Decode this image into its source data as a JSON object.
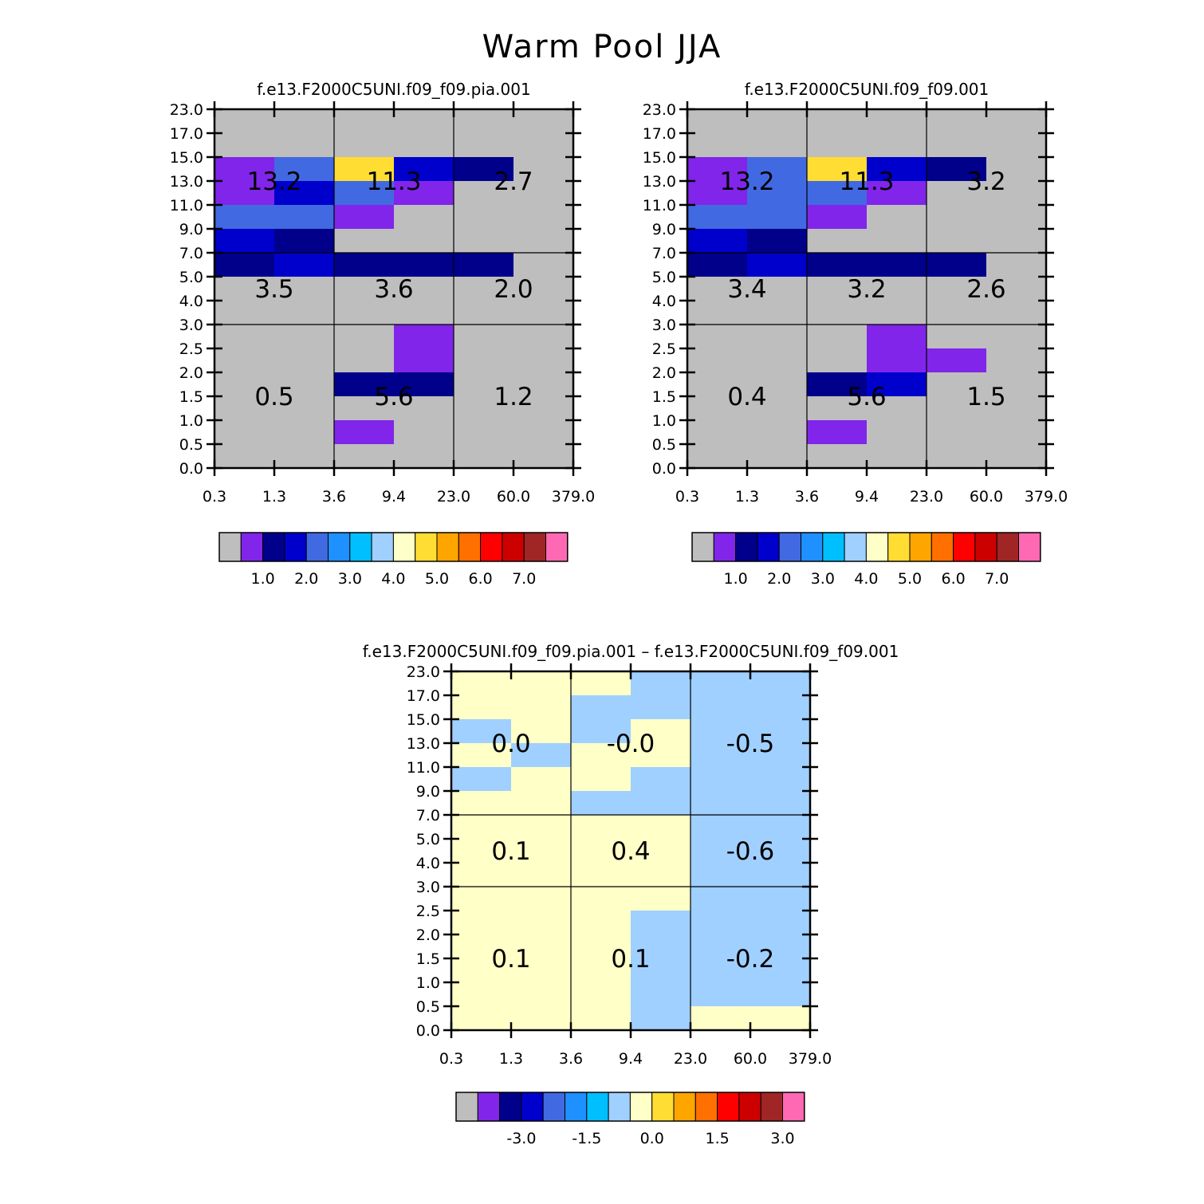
{
  "title": "Warm Pool JJA",
  "axes": {
    "x_ticks": [
      "0.3",
      "1.3",
      "3.6",
      "9.4",
      "23.0",
      "60.0",
      "379.0"
    ],
    "y_ticks": [
      "0.0",
      "0.5",
      "1.0",
      "1.5",
      "2.0",
      "2.5",
      "3.0",
      "4.0",
      "5.0",
      "7.0",
      "9.0",
      "11.0",
      "13.0",
      "15.0",
      "17.0",
      "23.0"
    ]
  },
  "palette": {
    "gray": "#bebebe",
    "purple": "#8125ea",
    "navy": "#00008b",
    "blue": "#0000cd",
    "royal": "#4169e1",
    "dodger": "#1e90ff",
    "deepsky": "#00bfff",
    "lightblue": "#a0d0ff",
    "lightyellow": "#ffffc8",
    "gold": "#ffdd33",
    "orange": "#ffa500",
    "darkorange": "#ff7000",
    "red": "#ff0000",
    "darkred": "#cd0000",
    "brown": "#a02525",
    "pink": "#ff69b4"
  },
  "chart_data": [
    {
      "type": "heatmap",
      "title": "f.e13.F2000C5UNI.f09_f09.pia.001",
      "colorbar": {
        "colors": [
          "gray",
          "purple",
          "navy",
          "blue",
          "royal",
          "dodger",
          "deepsky",
          "lightblue",
          "lightyellow",
          "gold",
          "orange",
          "darkorange",
          "red",
          "darkred",
          "brown",
          "pink"
        ],
        "labels": [
          "1.0",
          "2.0",
          "3.0",
          "4.0",
          "5.0",
          "6.0",
          "7.0"
        ],
        "label_after_index": [
          1,
          3,
          5,
          7,
          9,
          11,
          13
        ]
      },
      "grid": [
        [
          "gray",
          "gray",
          "gray",
          "gray",
          "gray",
          "gray"
        ],
        [
          "gray",
          "gray",
          "gray",
          "gray",
          "gray",
          "gray"
        ],
        [
          "purple",
          "royal",
          "gold",
          "blue",
          "navy",
          "gray"
        ],
        [
          "purple",
          "blue",
          "royal",
          "purple",
          "gray",
          "gray"
        ],
        [
          "royal",
          "royal",
          "purple",
          "gray",
          "gray",
          "gray"
        ],
        [
          "blue",
          "navy",
          "gray",
          "gray",
          "gray",
          "gray"
        ],
        [
          "navy",
          "blue",
          "navy",
          "navy",
          "navy",
          "gray"
        ],
        [
          "gray",
          "gray",
          "gray",
          "gray",
          "gray",
          "gray"
        ],
        [
          "gray",
          "gray",
          "gray",
          "gray",
          "gray",
          "gray"
        ],
        [
          "gray",
          "gray",
          "gray",
          "purple",
          "gray",
          "gray"
        ],
        [
          "gray",
          "gray",
          "gray",
          "purple",
          "gray",
          "gray"
        ],
        [
          "gray",
          "gray",
          "navy",
          "navy",
          "gray",
          "gray"
        ],
        [
          "gray",
          "gray",
          "gray",
          "gray",
          "gray",
          "gray"
        ],
        [
          "gray",
          "gray",
          "purple",
          "gray",
          "gray",
          "gray"
        ],
        [
          "gray",
          "gray",
          "gray",
          "gray",
          "gray",
          "gray"
        ]
      ],
      "cell_values": [
        [
          "13.2",
          "11.3",
          "2.7"
        ],
        [
          "3.5",
          "3.6",
          "2.0"
        ],
        [
          "0.5",
          "5.6",
          "1.2"
        ]
      ]
    },
    {
      "type": "heatmap",
      "title": "f.e13.F2000C5UNI.f09_f09.001",
      "colorbar": {
        "colors": [
          "gray",
          "purple",
          "navy",
          "blue",
          "royal",
          "dodger",
          "deepsky",
          "lightblue",
          "lightyellow",
          "gold",
          "orange",
          "darkorange",
          "red",
          "darkred",
          "brown",
          "pink"
        ],
        "labels": [
          "1.0",
          "2.0",
          "3.0",
          "4.0",
          "5.0",
          "6.0",
          "7.0"
        ],
        "label_after_index": [
          1,
          3,
          5,
          7,
          9,
          11,
          13
        ]
      },
      "grid": [
        [
          "gray",
          "gray",
          "gray",
          "gray",
          "gray",
          "gray"
        ],
        [
          "gray",
          "gray",
          "gray",
          "gray",
          "gray",
          "gray"
        ],
        [
          "purple",
          "royal",
          "gold",
          "blue",
          "navy",
          "gray"
        ],
        [
          "purple",
          "royal",
          "royal",
          "purple",
          "gray",
          "gray"
        ],
        [
          "royal",
          "royal",
          "purple",
          "gray",
          "gray",
          "gray"
        ],
        [
          "blue",
          "navy",
          "gray",
          "gray",
          "gray",
          "gray"
        ],
        [
          "navy",
          "blue",
          "navy",
          "navy",
          "navy",
          "gray"
        ],
        [
          "gray",
          "gray",
          "gray",
          "gray",
          "gray",
          "gray"
        ],
        [
          "gray",
          "gray",
          "gray",
          "gray",
          "gray",
          "gray"
        ],
        [
          "gray",
          "gray",
          "gray",
          "purple",
          "gray",
          "gray"
        ],
        [
          "gray",
          "gray",
          "gray",
          "purple",
          "purple",
          "gray"
        ],
        [
          "gray",
          "gray",
          "navy",
          "blue",
          "gray",
          "gray"
        ],
        [
          "gray",
          "gray",
          "gray",
          "gray",
          "gray",
          "gray"
        ],
        [
          "gray",
          "gray",
          "purple",
          "gray",
          "gray",
          "gray"
        ],
        [
          "gray",
          "gray",
          "gray",
          "gray",
          "gray",
          "gray"
        ]
      ],
      "cell_values": [
        [
          "13.2",
          "11.3",
          "3.2"
        ],
        [
          "3.4",
          "3.2",
          "2.6"
        ],
        [
          "0.4",
          "5.6",
          "1.5"
        ]
      ]
    },
    {
      "type": "heatmap",
      "title": "f.e13.F2000C5UNI.f09_f09.pia.001 – f.e13.F2000C5UNI.f09_f09.001",
      "colorbar": {
        "colors": [
          "gray",
          "purple",
          "navy",
          "blue",
          "royal",
          "dodger",
          "deepsky",
          "lightblue",
          "lightyellow",
          "gold",
          "orange",
          "darkorange",
          "red",
          "darkred",
          "brown",
          "pink"
        ],
        "labels": [
          "-3.0",
          "-1.5",
          "0.0",
          "1.5",
          "3.0"
        ],
        "label_after_index": [
          2,
          5,
          8,
          11,
          14
        ]
      },
      "grid": [
        [
          "lightyellow",
          "lightyellow",
          "lightyellow",
          "lightblue",
          "lightblue",
          "lightblue"
        ],
        [
          "lightyellow",
          "lightyellow",
          "lightblue",
          "lightblue",
          "lightblue",
          "lightblue"
        ],
        [
          "lightblue",
          "lightyellow",
          "lightblue",
          "lightyellow",
          "lightblue",
          "lightblue"
        ],
        [
          "lightyellow",
          "lightblue",
          "lightyellow",
          "lightyellow",
          "lightblue",
          "lightblue"
        ],
        [
          "lightblue",
          "lightyellow",
          "lightyellow",
          "lightblue",
          "lightblue",
          "lightblue"
        ],
        [
          "lightyellow",
          "lightyellow",
          "lightblue",
          "lightblue",
          "lightblue",
          "lightblue"
        ],
        [
          "lightyellow",
          "lightyellow",
          "lightyellow",
          "lightyellow",
          "lightblue",
          "lightblue"
        ],
        [
          "lightyellow",
          "lightyellow",
          "lightyellow",
          "lightyellow",
          "lightblue",
          "lightblue"
        ],
        [
          "lightyellow",
          "lightyellow",
          "lightyellow",
          "lightyellow",
          "lightblue",
          "lightblue"
        ],
        [
          "lightyellow",
          "lightyellow",
          "lightyellow",
          "lightyellow",
          "lightblue",
          "lightblue"
        ],
        [
          "lightyellow",
          "lightyellow",
          "lightyellow",
          "lightblue",
          "lightblue",
          "lightblue"
        ],
        [
          "lightyellow",
          "lightyellow",
          "lightyellow",
          "lightblue",
          "lightblue",
          "lightblue"
        ],
        [
          "lightyellow",
          "lightyellow",
          "lightyellow",
          "lightblue",
          "lightblue",
          "lightblue"
        ],
        [
          "lightyellow",
          "lightyellow",
          "lightyellow",
          "lightblue",
          "lightblue",
          "lightblue"
        ],
        [
          "lightyellow",
          "lightyellow",
          "lightyellow",
          "lightblue",
          "lightyellow",
          "lightyellow"
        ]
      ],
      "cell_values": [
        [
          "0.0",
          "-0.0",
          "-0.5"
        ],
        [
          "0.1",
          "0.4",
          "-0.6"
        ],
        [
          "0.1",
          "0.1",
          "-0.2"
        ]
      ]
    }
  ]
}
